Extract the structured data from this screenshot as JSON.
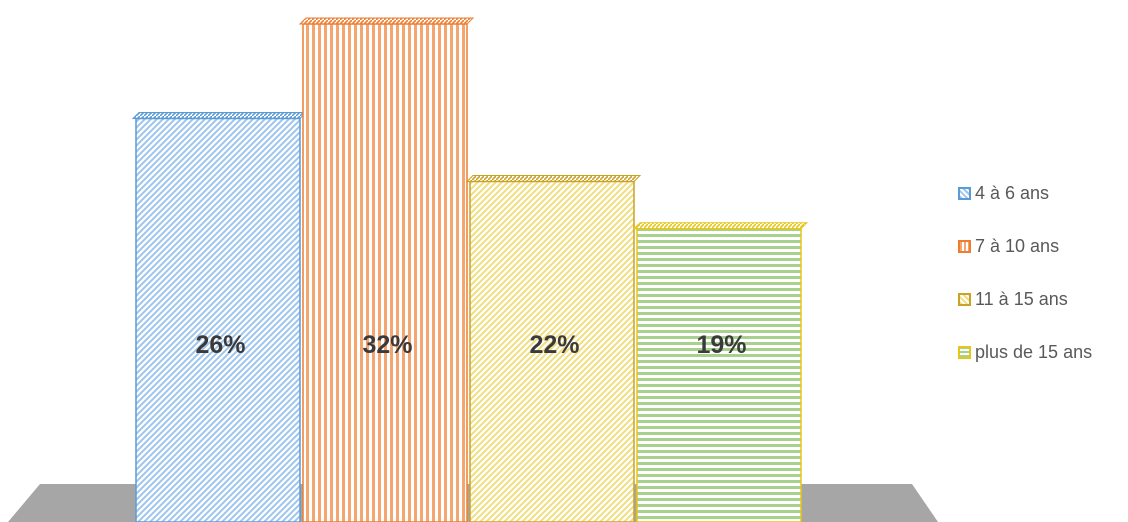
{
  "chart_data": {
    "type": "bar",
    "title": "",
    "xlabel": "",
    "ylabel": "",
    "categories": [
      "4 à 6 ans",
      "7 à 10 ans",
      "11 à 15 ans",
      "plus de 15 ans"
    ],
    "values": [
      26,
      32,
      22,
      19
    ],
    "data_labels": [
      "26%",
      "32%",
      "22%",
      "19%"
    ],
    "unit": "%",
    "grid": false,
    "legend_position": "right",
    "style": "3D hatched columns on grey floor",
    "colors": [
      {
        "fill": "#9ec5ee",
        "stroke": "#5b9bd5",
        "pattern": "diagonal"
      },
      {
        "fill": "#f5a670",
        "stroke": "#ed7d31",
        "pattern": "vertical"
      },
      {
        "fill": "#f2de7f",
        "stroke": "#c9a227",
        "pattern": "diagonal"
      },
      {
        "fill": "#a9d18e",
        "stroke": "#e6c619",
        "pattern": "horizontal"
      }
    ],
    "floor_color": "#a6a6a6"
  }
}
